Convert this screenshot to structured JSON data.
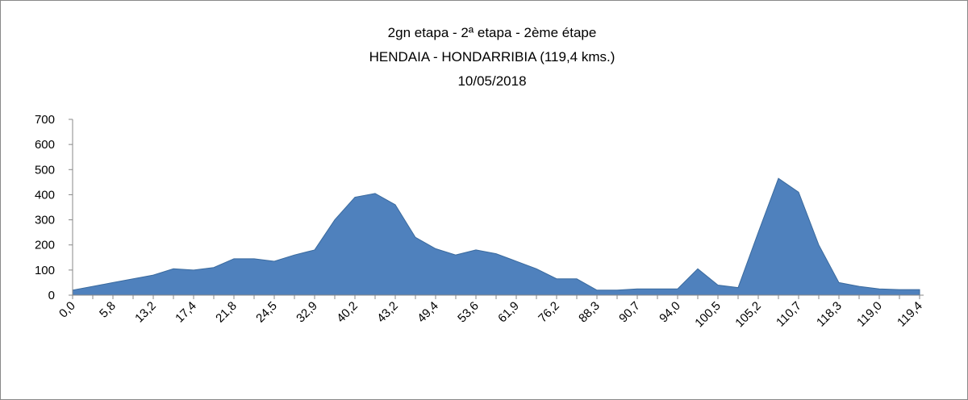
{
  "chart_data": {
    "type": "area",
    "title": [
      "2gn etapa - 2ª etapa - 2ème étape",
      "HENDAIA - HONDARRIBIA (119,4 kms.)",
      "10/05/2018"
    ],
    "categories": [
      "0,0",
      null,
      "5,8",
      null,
      "13,2",
      null,
      "17,4",
      null,
      "21,8",
      null,
      "24,5",
      null,
      "32,9",
      null,
      "40,2",
      null,
      "43,2",
      null,
      "49,4",
      null,
      "53,6",
      null,
      "61,9",
      null,
      "76,2",
      null,
      "88,3",
      null,
      "90,7",
      null,
      "94,0",
      null,
      "100,5",
      null,
      "105,2",
      null,
      "110,7",
      null,
      "118,3",
      null,
      "119,0",
      null,
      "119,4"
    ],
    "values": [
      20,
      35,
      50,
      65,
      80,
      105,
      100,
      110,
      145,
      145,
      135,
      160,
      180,
      300,
      390,
      405,
      360,
      230,
      185,
      160,
      180,
      165,
      135,
      105,
      65,
      65,
      20,
      20,
      25,
      25,
      25,
      105,
      40,
      30,
      250,
      465,
      410,
      200,
      50,
      35,
      25,
      22,
      22
    ],
    "color": "#4f81bd",
    "ylim": [
      0,
      700
    ],
    "yticks": [
      0,
      100,
      200,
      300,
      400,
      500,
      600,
      700
    ],
    "grid": false
  }
}
